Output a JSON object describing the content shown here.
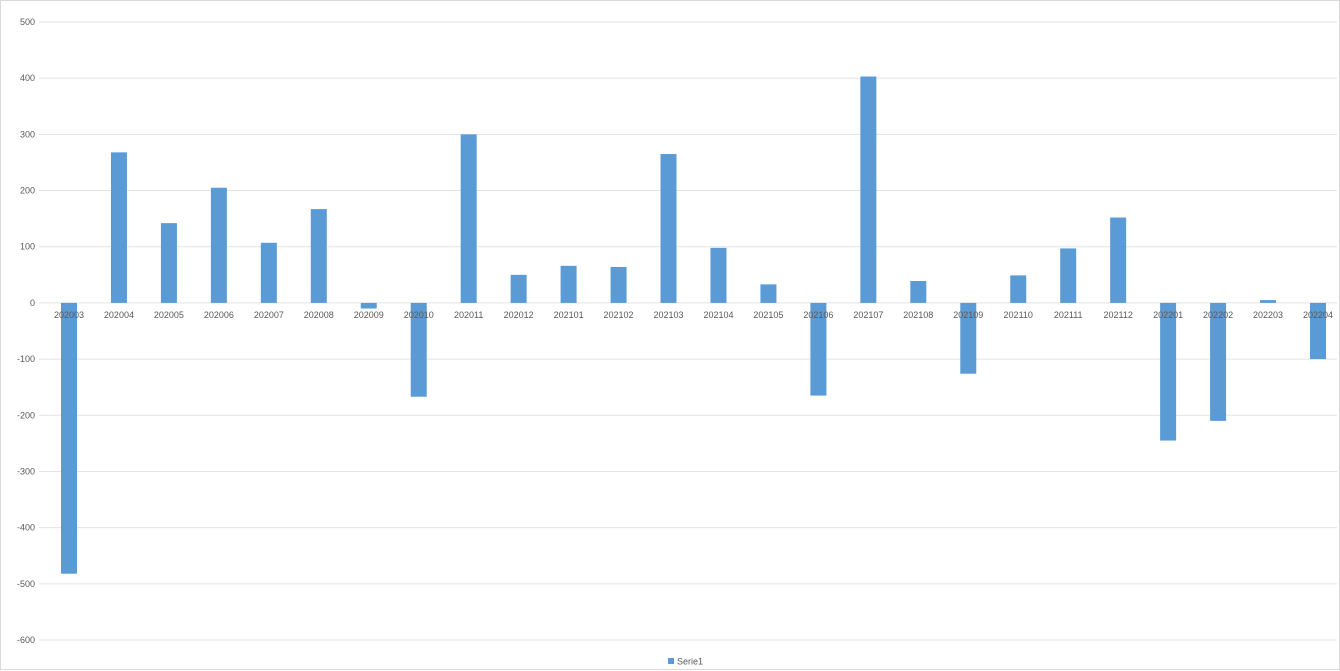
{
  "chart_data": {
    "type": "bar",
    "title": "",
    "xlabel": "",
    "ylabel": "",
    "categories": [
      "202003",
      "202004",
      "202005",
      "202006",
      "202007",
      "202008",
      "202009",
      "202010",
      "202011",
      "202012",
      "202101",
      "202102",
      "202103",
      "202104",
      "202105",
      "202106",
      "202107",
      "202108",
      "202109",
      "202110",
      "202111",
      "202112",
      "202201",
      "202202",
      "202203",
      "202204"
    ],
    "series": [
      {
        "name": "Serie1",
        "color": "#5b9bd5",
        "values": [
          -482,
          268,
          142,
          205,
          107,
          167,
          -10,
          -167,
          300,
          50,
          66,
          64,
          265,
          98,
          33,
          -165,
          403,
          39,
          -126,
          49,
          97,
          152,
          -245,
          -210,
          5,
          -100
        ]
      }
    ],
    "ylim": [
      -600,
      500
    ],
    "yticks": [
      500,
      400,
      300,
      200,
      100,
      0,
      -100,
      -200,
      -300,
      -400,
      -500,
      -600
    ],
    "grid": true,
    "legend": "bottom-center"
  }
}
